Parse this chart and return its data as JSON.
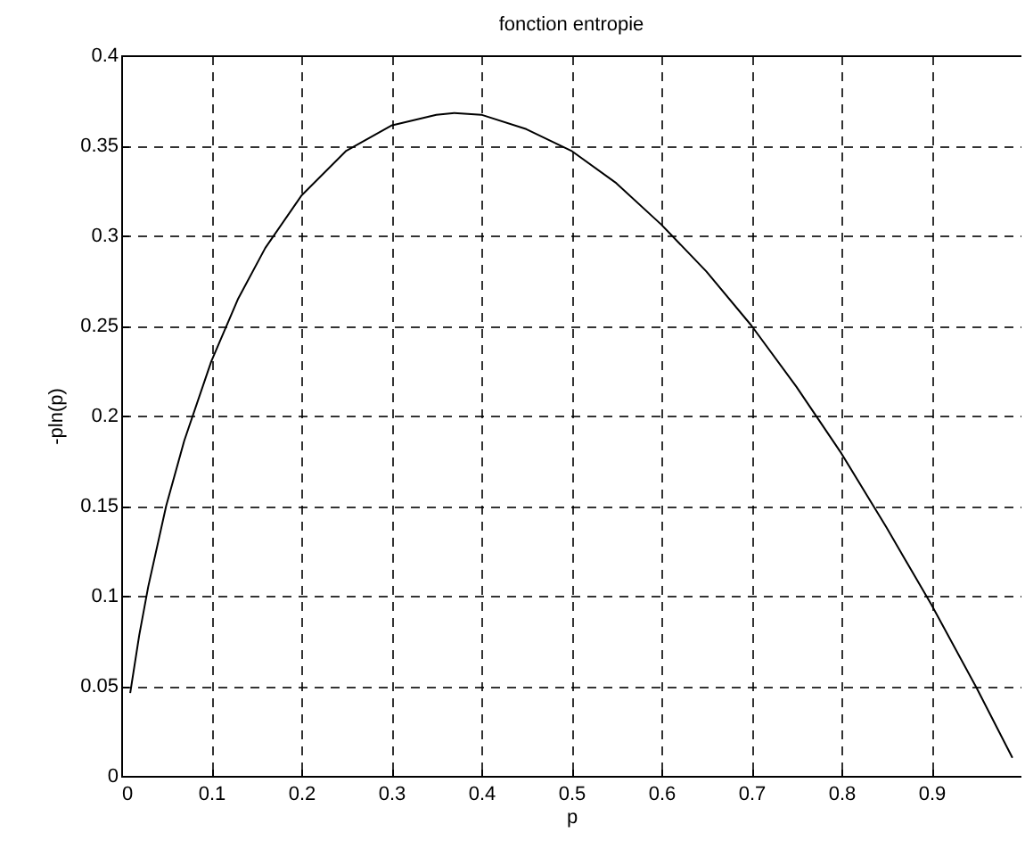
{
  "chart_data": {
    "type": "line",
    "title": "fonction entropie",
    "xlabel": "p",
    "ylabel": "-pln(p)",
    "x": [
      0.01,
      0.02,
      0.03,
      0.05,
      0.07,
      0.1,
      0.13,
      0.16,
      0.2,
      0.25,
      0.3,
      0.35,
      0.37,
      0.4,
      0.45,
      0.5,
      0.55,
      0.6,
      0.65,
      0.7,
      0.75,
      0.8,
      0.85,
      0.9,
      0.95,
      0.99
    ],
    "series": [
      {
        "color": "#000000",
        "values": [
          0.046,
          0.078,
          0.105,
          0.15,
          0.186,
          0.23,
          0.265,
          0.293,
          0.322,
          0.347,
          0.361,
          0.367,
          0.368,
          0.367,
          0.359,
          0.347,
          0.329,
          0.306,
          0.28,
          0.25,
          0.216,
          0.179,
          0.138,
          0.095,
          0.049,
          0.01
        ]
      }
    ],
    "xlim": [
      0,
      1
    ],
    "xticks": [
      0,
      0.1,
      0.2,
      0.3,
      0.4,
      0.5,
      0.6,
      0.7,
      0.8,
      0.9
    ],
    "ylim": [
      0,
      0.4
    ],
    "yticks": [
      0,
      0.05,
      0.1,
      0.15,
      0.2,
      0.25,
      0.3,
      0.35,
      0.4
    ],
    "grid": true,
    "legend": false,
    "marker": "none",
    "line_style": "solid"
  }
}
